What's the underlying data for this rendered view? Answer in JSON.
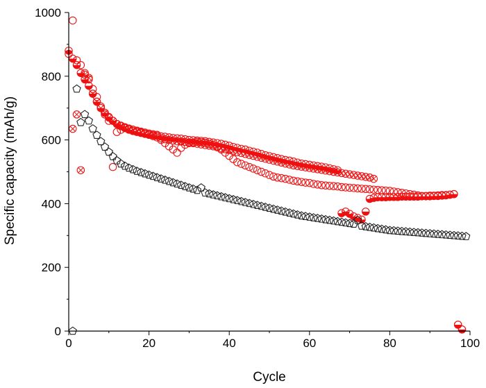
{
  "chart_data": {
    "type": "scatter",
    "title": "",
    "xlabel": "Cycle",
    "ylabel": "Specific capacity (mAh/g)",
    "xlim": [
      0,
      100
    ],
    "ylim": [
      0,
      1000
    ],
    "xticks": [
      0,
      20,
      40,
      60,
      80,
      100
    ],
    "yticks": [
      0,
      200,
      400,
      600,
      800,
      1000
    ],
    "grid": false,
    "legend": "none",
    "colors": {
      "red": "#ee1111",
      "black": "#222222"
    },
    "series": [
      {
        "marker": "half-filled-circle",
        "color": "#ee1111",
        "x": [
          0,
          1,
          2,
          3,
          4,
          5,
          6,
          7,
          8,
          9,
          10,
          11,
          12,
          13,
          14,
          15,
          16,
          17,
          18,
          19,
          20,
          21,
          22,
          23,
          24,
          25,
          26,
          27,
          28,
          29,
          30,
          31,
          32,
          33,
          34,
          35,
          36,
          37,
          38,
          39,
          40,
          41,
          42,
          43,
          44,
          45,
          46,
          47,
          48,
          49,
          50,
          51,
          52,
          53,
          54,
          55,
          56,
          57,
          58,
          59,
          60,
          61,
          62,
          63,
          64,
          65,
          66,
          67,
          68,
          69,
          70,
          71,
          72,
          73,
          74,
          75,
          76,
          77,
          78,
          79,
          80,
          81,
          82,
          83,
          84,
          85,
          86,
          87,
          88,
          89,
          90,
          91,
          92,
          93,
          94,
          95,
          96,
          97,
          98
        ],
        "y": [
          880,
          855,
          835,
          810,
          790,
          770,
          745,
          720,
          700,
          685,
          672,
          660,
          650,
          643,
          637,
          632,
          628,
          625,
          622,
          619,
          617,
          615,
          613,
          611,
          610,
          608,
          606,
          605,
          604,
          602,
          600,
          599,
          598,
          597,
          596,
          594,
          592,
          590,
          588,
          585,
          582,
          578,
          575,
          572,
          570,
          566,
          563,
          560,
          556,
          552,
          549,
          546,
          543,
          540,
          537,
          535,
          532,
          529,
          526,
          524,
          522,
          520,
          518,
          516,
          514,
          511,
          508,
          505,
          370,
          375,
          368,
          360,
          355,
          350,
          375,
          415,
          418,
          420,
          420,
          420,
          421,
          421,
          421,
          422,
          422,
          422,
          422,
          422,
          423,
          423,
          423,
          424,
          424,
          425,
          426,
          428,
          430,
          20,
          5
        ]
      },
      {
        "marker": "open-circle",
        "color": "#ee1111",
        "x": [
          0,
          1,
          2,
          3,
          4,
          5,
          6,
          7,
          8,
          9,
          10,
          11,
          12,
          13,
          14,
          15,
          16,
          17,
          18,
          19,
          20,
          21,
          22,
          23,
          24,
          25,
          26,
          27,
          28,
          29,
          30,
          31,
          32,
          33,
          34,
          35,
          36,
          37,
          38,
          39,
          40,
          41,
          42,
          43,
          44,
          45,
          46,
          47,
          48,
          49,
          50,
          51,
          52,
          53,
          54,
          55,
          56,
          57,
          58,
          59,
          60,
          61,
          62,
          63,
          64,
          65,
          66,
          67,
          68,
          69,
          70,
          71,
          72,
          73,
          74,
          75,
          76,
          77,
          78,
          79,
          80,
          81,
          82,
          83,
          84,
          85,
          86,
          87,
          88,
          89,
          90,
          91,
          92,
          93,
          94,
          95,
          96,
          97,
          98
        ],
        "y": [
          870,
          975,
          850,
          835,
          810,
          790,
          760,
          735,
          705,
          680,
          660,
          515,
          625,
          632,
          638,
          636,
          632,
          629,
          626,
          623,
          620,
          618,
          616,
          600,
          590,
          580,
          570,
          560,
          575,
          585,
          590,
          592,
          594,
          593,
          591,
          588,
          585,
          580,
          570,
          560,
          550,
          540,
          530,
          525,
          520,
          515,
          510,
          505,
          500,
          495,
          490,
          485,
          482,
          480,
          478,
          475,
          472,
          470,
          468,
          466,
          465,
          462,
          460,
          458,
          457,
          456,
          455,
          454,
          452,
          451,
          450,
          449,
          448,
          447,
          446,
          445,
          444,
          443,
          442,
          441,
          440,
          438,
          436,
          434,
          432,
          430,
          428,
          426,
          424,
          424,
          425,
          425,
          426,
          427,
          427,
          428,
          430,
          20,
          5
        ]
      },
      {
        "marker": "crossed-circle",
        "color": "#ee1111",
        "x": [
          1,
          2,
          3,
          4,
          5,
          6,
          7,
          8,
          9,
          10,
          11,
          12,
          13,
          14,
          15,
          16,
          17,
          18,
          19,
          20,
          21,
          22,
          23,
          24,
          25,
          26,
          27,
          28,
          29,
          30,
          31,
          32,
          33,
          34,
          35,
          36,
          37,
          38,
          39,
          40,
          41,
          42,
          43,
          44,
          45,
          46,
          47,
          48,
          49,
          50,
          51,
          52,
          53,
          54,
          55,
          56,
          57,
          58,
          59,
          60,
          61,
          62,
          63,
          64,
          65,
          66,
          67,
          68,
          69,
          70,
          71,
          72,
          73,
          74,
          75,
          76
        ],
        "y": [
          635,
          680,
          505,
          805,
          795,
          745,
          720,
          700,
          685,
          670,
          660,
          650,
          645,
          640,
          635,
          632,
          628,
          624,
          620,
          616,
          612,
          608,
          605,
          602,
          600,
          598,
          596,
          595,
          594,
          592,
          590,
          588,
          586,
          584,
          582,
          580,
          577,
          574,
          571,
          568,
          565,
          562,
          559,
          556,
          553,
          550,
          547,
          544,
          541,
          538,
          535,
          532,
          529,
          526,
          523,
          520,
          518,
          516,
          514,
          512,
          510,
          508,
          506,
          504,
          502,
          500,
          498,
          496,
          494,
          492,
          490,
          488,
          486,
          484,
          482,
          478
        ]
      },
      {
        "marker": "open-pentagon",
        "color": "#222222",
        "x": [
          1,
          2,
          3,
          4,
          5,
          6,
          7,
          8,
          9,
          10,
          11,
          12,
          13,
          14,
          15,
          16,
          17,
          18,
          19,
          20,
          21,
          22,
          23,
          24,
          25,
          26,
          27,
          28,
          29,
          30,
          31,
          32,
          33,
          34,
          35,
          36,
          37,
          38,
          39,
          40,
          41,
          42,
          43,
          44,
          45,
          46,
          47,
          48,
          49,
          50,
          51,
          52,
          53,
          54,
          55,
          56,
          57,
          58,
          59,
          60,
          61,
          62,
          63,
          64,
          65,
          66,
          67,
          68,
          69,
          70,
          71,
          72,
          73,
          74,
          75,
          76,
          77,
          78,
          79,
          80,
          81,
          82,
          83,
          84,
          85,
          86,
          87,
          88,
          89,
          90,
          91,
          92,
          93,
          94,
          95,
          96,
          97,
          98,
          99
        ],
        "y": [
          0,
          760,
          655,
          680,
          660,
          635,
          615,
          595,
          578,
          562,
          548,
          535,
          525,
          518,
          512,
          507,
          502,
          498,
          494,
          490,
          486,
          482,
          478,
          474,
          470,
          466,
          462,
          458,
          454,
          450,
          446,
          442,
          450,
          434,
          431,
          428,
          425,
          422,
          419,
          416,
          413,
          410,
          407,
          404,
          401,
          398,
          395,
          392,
          389,
          386,
          383,
          380,
          377,
          374,
          371,
          368,
          365,
          362,
          360,
          358,
          356,
          354,
          352,
          350,
          348,
          346,
          344,
          342,
          340,
          338,
          336,
          348,
          330,
          328,
          326,
          324,
          322,
          320,
          318,
          316,
          315,
          314,
          313,
          312,
          311,
          310,
          309,
          308,
          307,
          306,
          305,
          304,
          303,
          302,
          301,
          300,
          299,
          298,
          297
        ]
      }
    ]
  }
}
